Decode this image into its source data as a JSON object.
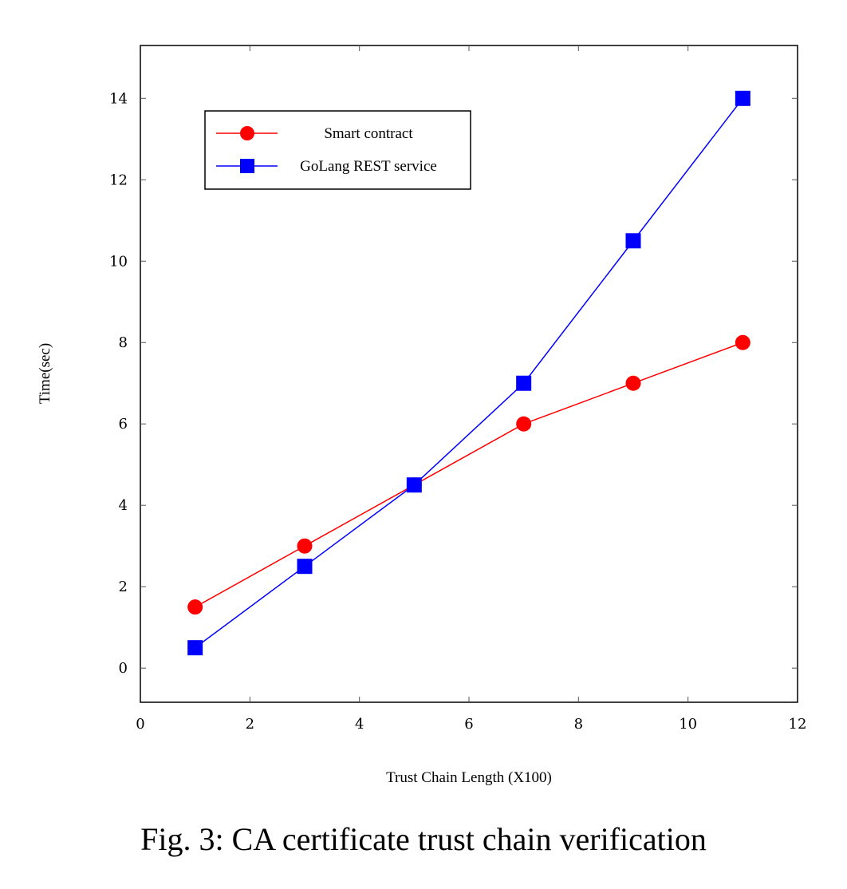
{
  "chart_data": {
    "type": "line",
    "title": "",
    "xlabel": "Trust Chain Length (X100)",
    "ylabel": "Time(sec)",
    "xlim": [
      0,
      12
    ],
    "ylim": [
      -0.84,
      15.3
    ],
    "xticks": [
      0,
      2,
      4,
      6,
      8,
      10,
      12
    ],
    "yticks": [
      0,
      2,
      4,
      6,
      8,
      10,
      12,
      14
    ],
    "grid": false,
    "legend_position": "top-left",
    "series": [
      {
        "name": "Smart contract",
        "color": "#ff0000",
        "marker": "circle",
        "x": [
          1,
          3,
          5,
          7,
          9,
          11
        ],
        "y": [
          1.5,
          3,
          4.5,
          6,
          7,
          8
        ]
      },
      {
        "name": "GoLang REST service",
        "color": "#0000ff",
        "marker": "square",
        "x": [
          1,
          3,
          5,
          7,
          9,
          11
        ],
        "y": [
          0.5,
          2.5,
          4.5,
          7,
          10.5,
          14
        ]
      }
    ]
  },
  "caption": "Fig. 3: CA certificate trust chain verification"
}
